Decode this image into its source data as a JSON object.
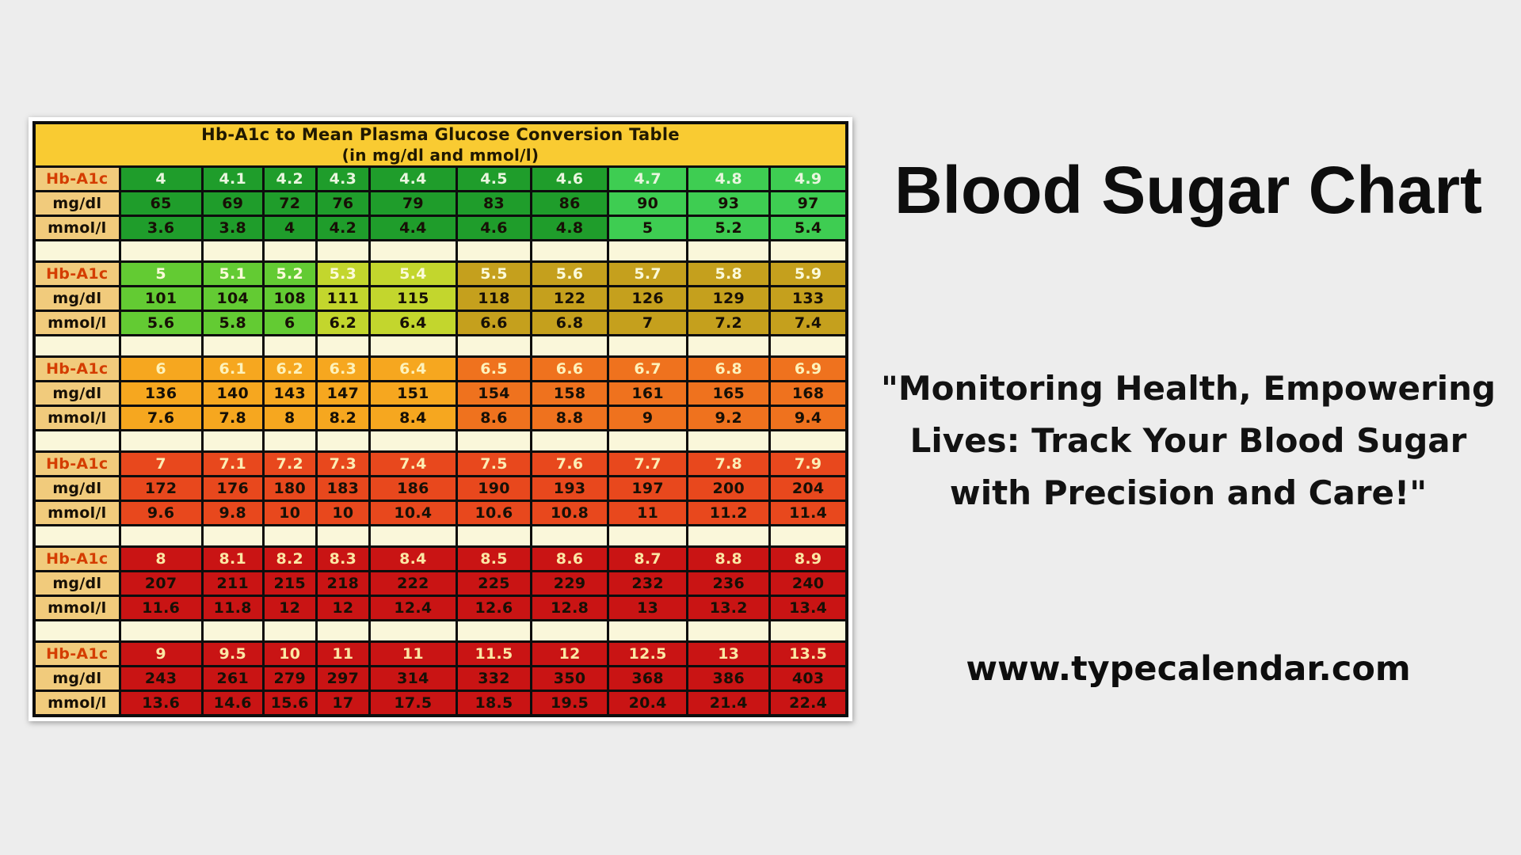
{
  "page": {
    "background": "#ededed"
  },
  "chart_data": {
    "type": "table",
    "title": "Hb-A1c to Mean Plasma Glucose Conversion Table",
    "subtitle": "(in mg/dl and mmol/l)",
    "row_labels": [
      "Hb-A1c",
      "mg/dl",
      "mmol/l"
    ],
    "groups": [
      {
        "hba1c": [
          "4",
          "4.1",
          "4.2",
          "4.3",
          "4.4",
          "4.5",
          "4.6",
          "4.7",
          "4.8",
          "4.9"
        ],
        "mg_dl": [
          "65",
          "69",
          "72",
          "76",
          "79",
          "83",
          "86",
          "90",
          "93",
          "97"
        ],
        "mmol_l": [
          "3.6",
          "3.8",
          "4",
          "4.2",
          "4.4",
          "4.6",
          "4.8",
          "5",
          "5.2",
          "5.4"
        ],
        "cell_colors": [
          "#1f9d2b",
          "#1f9d2b",
          "#1f9d2b",
          "#1f9d2b",
          "#1f9d2b",
          "#1f9d2b",
          "#1f9d2b",
          "#3ecd52",
          "#3ecd52",
          "#3ecd52"
        ],
        "hba1c_text_color": "#e9f6df"
      },
      {
        "hba1c": [
          "5",
          "5.1",
          "5.2",
          "5.3",
          "5.4",
          "5.5",
          "5.6",
          "5.7",
          "5.8",
          "5.9"
        ],
        "mg_dl": [
          "101",
          "104",
          "108",
          "111",
          "115",
          "118",
          "122",
          "126",
          "129",
          "133"
        ],
        "mmol_l": [
          "5.6",
          "5.8",
          "6",
          "6.2",
          "6.4",
          "6.6",
          "6.8",
          "7",
          "7.2",
          "7.4"
        ],
        "cell_colors": [
          "#63cb33",
          "#63cb33",
          "#63cb33",
          "#c3d62d",
          "#c3d62d",
          "#c5a01d",
          "#c5a01d",
          "#c5a01d",
          "#c5a01d",
          "#c5a01d"
        ],
        "hba1c_text_color": "#fbfada"
      },
      {
        "hba1c": [
          "6",
          "6.1",
          "6.2",
          "6.3",
          "6.4",
          "6.5",
          "6.6",
          "6.7",
          "6.8",
          "6.9"
        ],
        "mg_dl": [
          "136",
          "140",
          "143",
          "147",
          "151",
          "154",
          "158",
          "161",
          "165",
          "168"
        ],
        "mmol_l": [
          "7.6",
          "7.8",
          "8",
          "8.2",
          "8.4",
          "8.6",
          "8.8",
          "9",
          "9.2",
          "9.4"
        ],
        "cell_colors": [
          "#f6a71f",
          "#f6a71f",
          "#f6a71f",
          "#f6a71f",
          "#f6a71f",
          "#ef721e",
          "#ef721e",
          "#ef721e",
          "#ef721e",
          "#ef721e"
        ],
        "hba1c_text_color": "#fdf2bb"
      },
      {
        "hba1c": [
          "7",
          "7.1",
          "7.2",
          "7.3",
          "7.4",
          "7.5",
          "7.6",
          "7.7",
          "7.8",
          "7.9"
        ],
        "mg_dl": [
          "172",
          "176",
          "180",
          "183",
          "186",
          "190",
          "193",
          "197",
          "200",
          "204"
        ],
        "mmol_l": [
          "9.6",
          "9.8",
          "10",
          "10",
          "10.4",
          "10.6",
          "10.8",
          "11",
          "11.2",
          "11.4"
        ],
        "cell_colors": [
          "#e8481d",
          "#e8481d",
          "#e8481d",
          "#e8481d",
          "#e8481d",
          "#e8481d",
          "#e8481d",
          "#e8481d",
          "#e8481d",
          "#e8481d"
        ],
        "hba1c_text_color": "#fcedb4"
      },
      {
        "hba1c": [
          "8",
          "8.1",
          "8.2",
          "8.3",
          "8.4",
          "8.5",
          "8.6",
          "8.7",
          "8.8",
          "8.9"
        ],
        "mg_dl": [
          "207",
          "211",
          "215",
          "218",
          "222",
          "225",
          "229",
          "232",
          "236",
          "240"
        ],
        "mmol_l": [
          "11.6",
          "11.8",
          "12",
          "12",
          "12.4",
          "12.6",
          "12.8",
          "13",
          "13.2",
          "13.4"
        ],
        "cell_colors": [
          "#c91414",
          "#c91414",
          "#c91414",
          "#c91414",
          "#c91414",
          "#c91414",
          "#c91414",
          "#c91414",
          "#c91414",
          "#c91414"
        ],
        "hba1c_text_color": "#fbe7a4"
      },
      {
        "hba1c": [
          "9",
          "9.5",
          "10",
          "11",
          "11",
          "11.5",
          "12",
          "12.5",
          "13",
          "13.5"
        ],
        "mg_dl": [
          "243",
          "261",
          "279",
          "297",
          "314",
          "332",
          "350",
          "368",
          "386",
          "403"
        ],
        "mmol_l": [
          "13.6",
          "14.6",
          "15.6",
          "17",
          "17.5",
          "18.5",
          "19.5",
          "20.4",
          "21.4",
          "22.4"
        ],
        "cell_colors": [
          "#c91414",
          "#c91414",
          "#c91414",
          "#c91414",
          "#c91414",
          "#c91414",
          "#c91414",
          "#c91414",
          "#c91414",
          "#c91414"
        ],
        "hba1c_text_color": "#fbe7a4"
      }
    ],
    "colors": {
      "header_bg": "#f9cb32",
      "label_bg": "#f1cb7c",
      "label_hba1c_text": "#d43d00",
      "blank_row_bg": "#faf7da",
      "value_text": "#171006"
    },
    "layout_hint": "6 groups of 3 rows (Hb-A1c / mg/dl / mmol/l) separated by blank spacer rows"
  },
  "sidebar": {
    "title": "Blood Sugar Chart",
    "quote_lines": [
      "\"Monitoring Health, Empowering",
      "Lives: Track Your Blood Sugar",
      "with Precision and Care!\""
    ],
    "website": "www.typecalendar.com"
  }
}
